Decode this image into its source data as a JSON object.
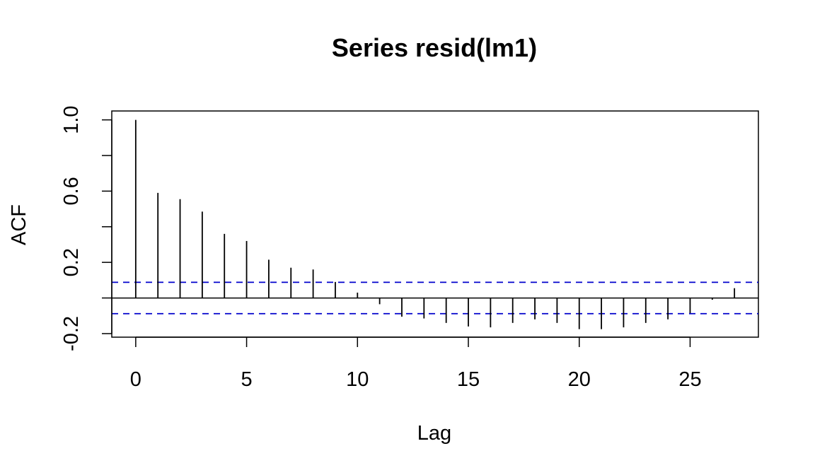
{
  "chart_data": {
    "type": "bar",
    "title": "Series  resid(lm1)",
    "xlabel": "Lag",
    "ylabel": "ACF",
    "xlim": [
      -1.08,
      28.08
    ],
    "ylim": [
      -0.22,
      1.05
    ],
    "x_ticks": [
      0,
      5,
      10,
      15,
      20,
      25
    ],
    "x_tick_labels": [
      "0",
      "5",
      "10",
      "15",
      "20",
      "25"
    ],
    "y_ticks": [
      -0.2,
      0.0,
      0.2,
      0.4,
      0.6,
      0.8,
      1.0
    ],
    "y_tick_labels": [
      "-0.2",
      "",
      "0.2",
      "",
      "0.6",
      "",
      "1.0"
    ],
    "lags": [
      0,
      1,
      2,
      3,
      4,
      5,
      6,
      7,
      8,
      9,
      10,
      11,
      12,
      13,
      14,
      15,
      16,
      17,
      18,
      19,
      20,
      21,
      22,
      23,
      24,
      25,
      26,
      27
    ],
    "acf": [
      1.0,
      0.59,
      0.555,
      0.485,
      0.36,
      0.32,
      0.215,
      0.17,
      0.16,
      0.09,
      0.03,
      -0.035,
      -0.105,
      -0.115,
      -0.14,
      -0.16,
      -0.165,
      -0.14,
      -0.12,
      -0.14,
      -0.175,
      -0.175,
      -0.165,
      -0.14,
      -0.12,
      -0.085,
      -0.01,
      0.055
    ],
    "confidence_bound": 0.088,
    "colors": {
      "bars": "#000000",
      "confidence_lines": "#0000cc",
      "zero_line": "#000000"
    },
    "grid": false
  }
}
